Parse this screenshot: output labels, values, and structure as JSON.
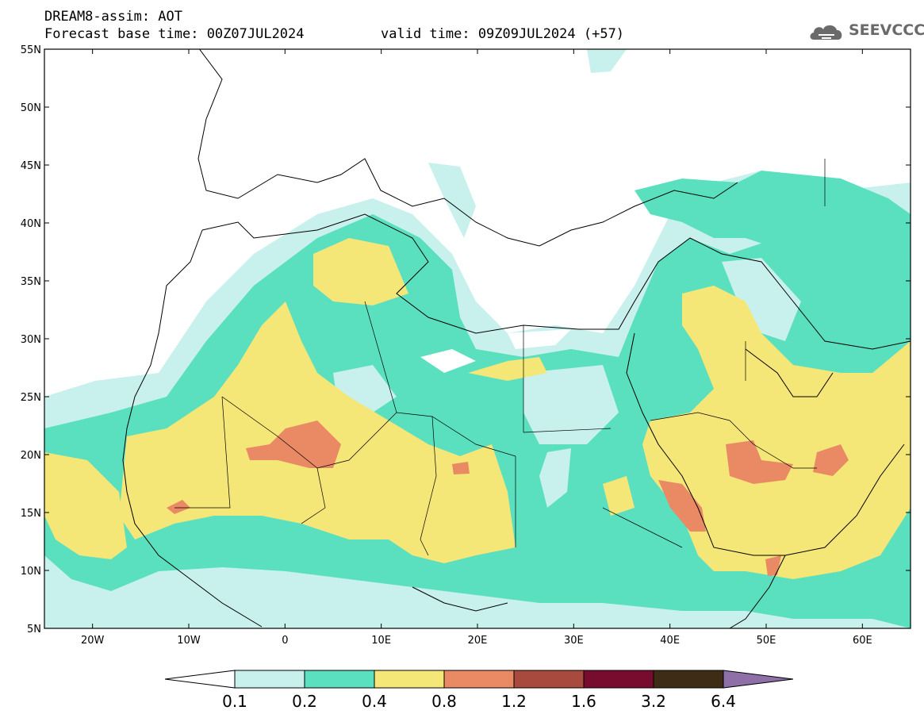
{
  "header": {
    "title": "DREAM8-assim: AOT",
    "base_time": "Forecast base time: 00Z07JUL2024",
    "valid_time": "valid time: 09Z09JUL2024 (+57)"
  },
  "logo": {
    "text": "SEEVCCC",
    "icon": "cloud-icon"
  },
  "map": {
    "lon_range": [
      -25,
      65
    ],
    "lat_range": [
      5,
      55
    ],
    "lat_ticks": [
      "5N",
      "10N",
      "15N",
      "20N",
      "25N",
      "30N",
      "35N",
      "40N",
      "45N",
      "50N",
      "55N"
    ],
    "lon_ticks": [
      "20W",
      "10W",
      "0",
      "10E",
      "20E",
      "30E",
      "40E",
      "50E",
      "60E"
    ]
  },
  "colorbar": {
    "levels": [
      "0.1",
      "0.2",
      "0.4",
      "0.8",
      "1.2",
      "1.6",
      "3.2",
      "6.4"
    ],
    "colors": [
      "#ffffff",
      "#c8f0ec",
      "#5ae0be",
      "#f5e678",
      "#e98a65",
      "#a84a3e",
      "#780c2e",
      "#3f2c16",
      "#8e6fa8"
    ]
  }
}
